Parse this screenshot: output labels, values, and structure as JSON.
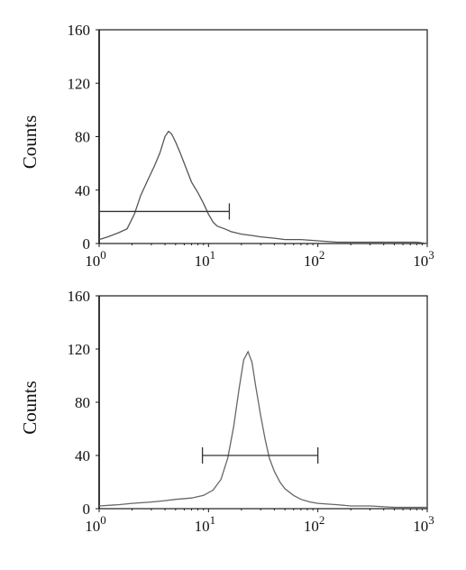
{
  "chart_data": [
    {
      "type": "line",
      "panel": "top",
      "title": "",
      "xlabel": "",
      "ylabel": "Counts",
      "xscale": "log",
      "xlim": [
        1,
        1000
      ],
      "ylim": [
        0,
        160
      ],
      "yticks": [
        "0",
        "40",
        "80",
        "120",
        "160"
      ],
      "xticks": [
        {
          "base": "10",
          "exp": "0"
        },
        {
          "base": "10",
          "exp": "1"
        },
        {
          "base": "10",
          "exp": "2"
        },
        {
          "base": "10",
          "exp": "3"
        }
      ],
      "series": [
        {
          "color": "#555555",
          "x": [
            1.0,
            1.2,
            1.5,
            1.8,
            2.1,
            2.4,
            2.8,
            3.2,
            3.6,
            4.0,
            4.3,
            4.6,
            5.0,
            5.5,
            6.0,
            7.0,
            8.0,
            9.0,
            10.0,
            11.0,
            12.0,
            14.0,
            16.0,
            20.0,
            25.0,
            30.0,
            40.0,
            50.0,
            70.0,
            100.0,
            150.0,
            200.0,
            300.0,
            500.0,
            800.0,
            1000.0
          ],
          "y": [
            3,
            5,
            8,
            11,
            22,
            36,
            48,
            58,
            68,
            80,
            84,
            82,
            76,
            68,
            60,
            46,
            38,
            30,
            22,
            16,
            13,
            11,
            9,
            7,
            6,
            5,
            4,
            3,
            3,
            2,
            1,
            1,
            1,
            1,
            1,
            0
          ]
        }
      ],
      "gate": {
        "x_start": 1.0,
        "x_end": 15.5,
        "y": 24
      }
    },
    {
      "type": "line",
      "panel": "bottom",
      "title": "",
      "xlabel": "",
      "ylabel": "Counts",
      "xscale": "log",
      "xlim": [
        1,
        1000
      ],
      "ylim": [
        0,
        160
      ],
      "yticks": [
        "0",
        "40",
        "80",
        "120",
        "160"
      ],
      "xticks": [
        {
          "base": "10",
          "exp": "0"
        },
        {
          "base": "10",
          "exp": "1"
        },
        {
          "base": "10",
          "exp": "2"
        },
        {
          "base": "10",
          "exp": "3"
        }
      ],
      "series": [
        {
          "color": "#666666",
          "x": [
            1.0,
            1.5,
            2.0,
            3.0,
            4.0,
            5.0,
            7.0,
            9.0,
            11.0,
            13.0,
            15.0,
            17.0,
            19.0,
            21.0,
            23.0,
            25.0,
            27.0,
            30.0,
            33.0,
            36.0,
            40.0,
            45.0,
            50.0,
            60.0,
            70.0,
            85.0,
            100.0,
            150.0,
            200.0,
            300.0,
            500.0,
            1000.0
          ],
          "y": [
            2,
            3,
            4,
            5,
            6,
            7,
            8,
            10,
            14,
            22,
            38,
            62,
            90,
            112,
            118,
            110,
            92,
            70,
            52,
            38,
            28,
            20,
            15,
            10,
            7,
            5,
            4,
            3,
            2,
            2,
            1,
            1
          ]
        }
      ],
      "gate": {
        "x_start": 8.8,
        "x_end": 100.0,
        "y": 40
      }
    }
  ]
}
